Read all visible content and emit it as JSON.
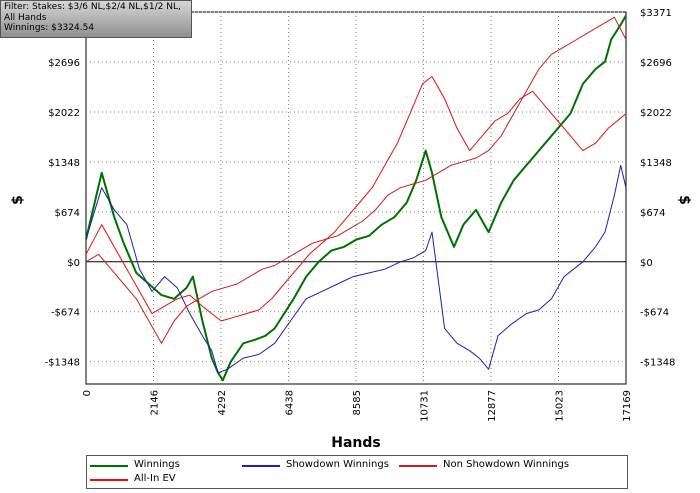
{
  "filter": {
    "lines": [
      "Filter: Stakes: $3/6 NL,$2/4 NL,$1/2 NL,",
      "All Hands",
      "Winnings: $3324.54"
    ]
  },
  "chart_data": {
    "type": "line",
    "title": "",
    "xlabel": "Hands",
    "ylabel_left": "$",
    "ylabel_right": "$",
    "xlim": [
      0,
      17169
    ],
    "ylim": [
      -1650,
      3371
    ],
    "x_ticks": [
      0,
      2146,
      4292,
      6438,
      8585,
      10731,
      12877,
      15023,
      17169
    ],
    "y_ticks": [
      {
        "value": 3371,
        "label": "$3371"
      },
      {
        "value": 2696,
        "label": "$2696"
      },
      {
        "value": 2022,
        "label": "$2022"
      },
      {
        "value": 1348,
        "label": "$1348"
      },
      {
        "value": 674,
        "label": "$674"
      },
      {
        "value": 0,
        "label": "$0"
      },
      {
        "value": -674,
        "label": "-$674"
      },
      {
        "value": -1348,
        "label": "-$1348"
      }
    ],
    "grid": true,
    "legend_position": "bottom",
    "series": [
      {
        "name": "Winnings",
        "color": "#007000",
        "x": [
          0,
          500,
          900,
          1200,
          1600,
          2000,
          2400,
          2800,
          3200,
          3400,
          3700,
          4000,
          4200,
          4350,
          4600,
          5000,
          5400,
          5700,
          6000,
          6300,
          6600,
          7000,
          7400,
          7800,
          8200,
          8600,
          9000,
          9400,
          9800,
          10200,
          10500,
          10800,
          11000,
          11300,
          11700,
          12000,
          12400,
          12800,
          13200,
          13600,
          14000,
          14400,
          14800,
          15200,
          15400,
          15800,
          16200,
          16500,
          16700,
          17000,
          17169
        ],
        "y": [
          300,
          1200,
          600,
          250,
          -150,
          -300,
          -450,
          -500,
          -350,
          -200,
          -800,
          -1300,
          -1500,
          -1600,
          -1350,
          -1100,
          -1050,
          -1000,
          -900,
          -700,
          -500,
          -200,
          0,
          150,
          200,
          300,
          350,
          500,
          600,
          800,
          1100,
          1500,
          1200,
          600,
          200,
          500,
          700,
          400,
          800,
          1100,
          1300,
          1500,
          1700,
          1900,
          2000,
          2400,
          2600,
          2700,
          3000,
          3200,
          3324
        ]
      },
      {
        "name": "Showdown Winnings",
        "color": "#1f1fb0",
        "x": [
          0,
          500,
          900,
          1300,
          1700,
          2100,
          2500,
          2900,
          3300,
          3700,
          4000,
          4200,
          4500,
          5000,
          5500,
          6000,
          6500,
          7000,
          7500,
          8000,
          8500,
          9000,
          9500,
          10000,
          10400,
          10800,
          11000,
          11400,
          11800,
          12200,
          12500,
          12800,
          13100,
          13500,
          14000,
          14400,
          14800,
          15200,
          15500,
          15800,
          16200,
          16500,
          16800,
          17000,
          17169
        ],
        "y": [
          300,
          1000,
          700,
          500,
          -100,
          -400,
          -200,
          -350,
          -700,
          -1000,
          -1200,
          -1500,
          -1450,
          -1300,
          -1250,
          -1100,
          -800,
          -500,
          -400,
          -300,
          -200,
          -150,
          -100,
          0,
          50,
          150,
          400,
          -900,
          -1100,
          -1200,
          -1300,
          -1450,
          -1000,
          -850,
          -700,
          -650,
          -500,
          -200,
          -100,
          0,
          200,
          400,
          900,
          1300,
          1000
        ]
      },
      {
        "name": "Non Showdown Winnings",
        "color": "#c81e1e",
        "x": [
          0,
          400,
          800,
          1200,
          1600,
          2000,
          2400,
          2800,
          3200,
          3600,
          4000,
          4400,
          4800,
          5200,
          5600,
          6000,
          6400,
          6800,
          7200,
          7600,
          8000,
          8400,
          8800,
          9200,
          9600,
          10000,
          10400,
          10800,
          11200,
          11600,
          12000,
          12400,
          12800,
          13200,
          13600,
          14000,
          14400,
          14800,
          15200,
          15600,
          16000,
          16400,
          16800,
          17169
        ],
        "y": [
          0,
          100,
          -100,
          -300,
          -500,
          -800,
          -1100,
          -800,
          -600,
          -500,
          -400,
          -350,
          -300,
          -200,
          -100,
          -50,
          50,
          150,
          250,
          300,
          350,
          450,
          550,
          700,
          900,
          1000,
          1050,
          1100,
          1200,
          1300,
          1350,
          1400,
          1500,
          1700,
          2000,
          2300,
          2600,
          2800,
          2900,
          3000,
          3100,
          3200,
          3300,
          3000
        ]
      },
      {
        "name": "All-In EV",
        "color": "#e01010",
        "x": [
          0,
          500,
          900,
          1300,
          1700,
          2100,
          2500,
          2900,
          3300,
          3700,
          4000,
          4300,
          4700,
          5100,
          5500,
          5900,
          6300,
          6700,
          7100,
          7500,
          7900,
          8300,
          8700,
          9100,
          9500,
          9900,
          10300,
          10700,
          11000,
          11400,
          11800,
          12200,
          12600,
          13000,
          13400,
          13800,
          14200,
          14600,
          15000,
          15400,
          15800,
          16200,
          16600,
          17169
        ],
        "y": [
          100,
          500,
          200,
          -100,
          -400,
          -700,
          -600,
          -500,
          -450,
          -600,
          -700,
          -800,
          -750,
          -700,
          -650,
          -500,
          -300,
          -100,
          100,
          250,
          400,
          600,
          800,
          1000,
          1300,
          1600,
          2000,
          2400,
          2500,
          2200,
          1800,
          1500,
          1700,
          1900,
          2000,
          2200,
          2300,
          2100,
          1900,
          1700,
          1500,
          1600,
          1800,
          2000
        ]
      }
    ]
  },
  "legend": [
    {
      "label": "Winnings",
      "color": "#007000"
    },
    {
      "label": "Showdown Winnings",
      "color": "#1f1fb0"
    },
    {
      "label": "Non Showdown Winnings",
      "color": "#c81e1e"
    },
    {
      "label": "All-In EV",
      "color": "#e01010"
    }
  ]
}
